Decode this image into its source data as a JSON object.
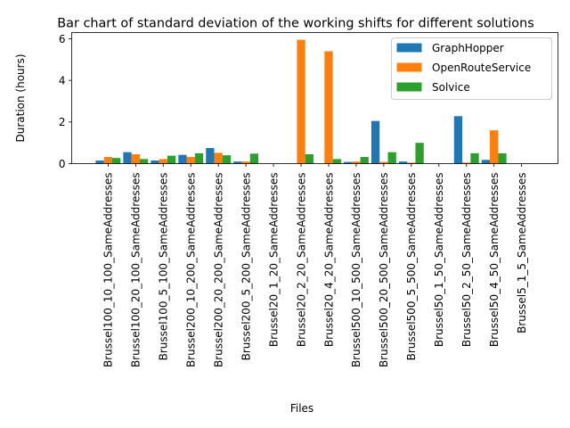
{
  "chart_data": {
    "type": "bar",
    "title": "Bar chart of standard deviation of the working shifts for different solutions",
    "xlabel": "Files",
    "ylabel": "Duration (hours)",
    "ylim": [
      0,
      6.3
    ],
    "yticks": [
      0,
      2,
      4,
      6
    ],
    "legend_position": "top-right",
    "grid": false,
    "categories": [
      "Brussel100_10_100_SameAddresses",
      "Brussel100_20_100_SameAddresses",
      "Brussel100_5_100_SameAddresses",
      "Brussel200_10_200_SameAddresses",
      "Brussel200_20_200_SameAddresses",
      "Brussel200_5_200_SameAddresses",
      "Brussel20_1_20_SameAddresses",
      "Brussel20_2_20_SameAddresses",
      "Brussel20_4_20_SameAddresses",
      "Brussel500_10_500_SameAddresses",
      "Brussel500_20_500_SameAddresses",
      "Brussel500_5_500_SameAddresses",
      "Brussel50_1_50_SameAddresses",
      "Brussel50_2_50_SameAddresses",
      "Brussel50_4_50_SameAddresses",
      "Brussel5_1_5_SameAddresses"
    ],
    "series": [
      {
        "name": "GraphHopper",
        "color": "#1f77b4",
        "values": [
          0.15,
          0.55,
          0.15,
          0.42,
          0.75,
          0.1,
          0,
          0,
          0,
          0.08,
          2.05,
          0.1,
          0,
          2.28,
          0.18,
          0
        ]
      },
      {
        "name": "OpenRouteService",
        "color": "#ff7f0e",
        "values": [
          0.32,
          0.45,
          0.22,
          0.32,
          0.52,
          0.1,
          0,
          5.95,
          5.4,
          0.1,
          0.08,
          0.05,
          0,
          0.05,
          1.6,
          0
        ]
      },
      {
        "name": "Solvice",
        "color": "#2ca02c",
        "values": [
          0.27,
          0.22,
          0.38,
          0.5,
          0.4,
          0.48,
          0,
          0.45,
          0.22,
          0.32,
          0.55,
          1.0,
          0,
          0.5,
          0.5,
          0
        ]
      }
    ]
  }
}
